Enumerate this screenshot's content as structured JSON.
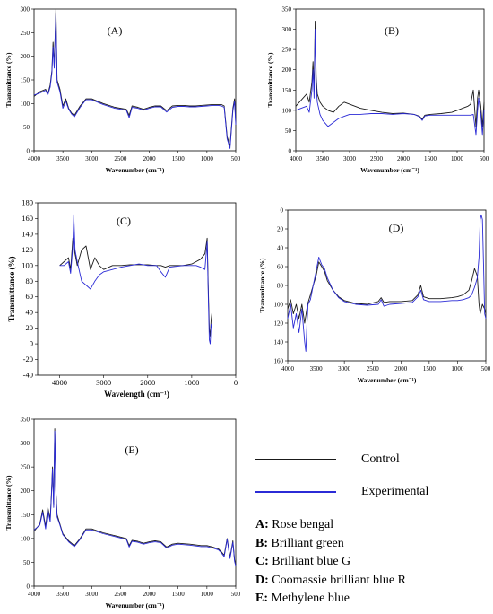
{
  "legend": {
    "control_label": "Control",
    "experimental_label": "Experimental",
    "control_color": "#1a1a1a",
    "experimental_color": "#2b2bd6"
  },
  "dyes": [
    {
      "key": "A:",
      "name": " Rose bengal"
    },
    {
      "key": "B:",
      "name": " Brilliant green"
    },
    {
      "key": "C:",
      "name": " Brilliant blue G"
    },
    {
      "key": "D:",
      "name": " Coomassie brilliant blue R"
    },
    {
      "key": "E:",
      "name": " Methylene blue"
    }
  ],
  "chart_data": [
    {
      "id": "A",
      "type": "line",
      "title": "(A)",
      "xlabel": "Wavenumber (cm⁻¹)",
      "ylabel": "Transmittance (%)",
      "xlim": [
        4000,
        500
      ],
      "ylim": [
        0,
        300
      ],
      "xticks": [
        4000,
        3500,
        3000,
        2500,
        2000,
        1500,
        1000,
        500
      ],
      "yticks": [
        0,
        50,
        100,
        150,
        200,
        250,
        300
      ],
      "series": [
        {
          "name": "Control",
          "x": [
            4000,
            3900,
            3800,
            3760,
            3720,
            3690,
            3670,
            3650,
            3620,
            3600,
            3550,
            3500,
            3450,
            3400,
            3350,
            3300,
            3200,
            3100,
            3000,
            2800,
            2600,
            2400,
            2350,
            2300,
            2200,
            2100,
            2000,
            1900,
            1800,
            1700,
            1600,
            1500,
            1400,
            1300,
            1200,
            1100,
            1000,
            900,
            800,
            750,
            700,
            650,
            600,
            550,
            520,
            500
          ],
          "y": [
            115,
            125,
            130,
            120,
            140,
            170,
            230,
            180,
            300,
            150,
            130,
            95,
            110,
            90,
            80,
            75,
            95,
            110,
            110,
            100,
            92,
            88,
            75,
            95,
            92,
            88,
            92,
            95,
            95,
            85,
            95,
            96,
            96,
            95,
            95,
            96,
            97,
            98,
            98,
            98,
            95,
            30,
            10,
            90,
            110,
            60
          ]
        },
        {
          "name": "Experimental",
          "x": [
            4000,
            3900,
            3800,
            3760,
            3720,
            3690,
            3670,
            3650,
            3620,
            3600,
            3550,
            3500,
            3450,
            3400,
            3350,
            3300,
            3200,
            3100,
            3000,
            2800,
            2600,
            2400,
            2350,
            2300,
            2200,
            2100,
            2000,
            1900,
            1800,
            1700,
            1600,
            1500,
            1400,
            1300,
            1200,
            1100,
            1000,
            900,
            800,
            750,
            700,
            650,
            600,
            550,
            520,
            500
          ],
          "y": [
            118,
            122,
            128,
            118,
            135,
            165,
            220,
            175,
            290,
            145,
            125,
            90,
            105,
            88,
            78,
            72,
            92,
            108,
            108,
            98,
            90,
            86,
            70,
            92,
            90,
            86,
            90,
            93,
            93,
            82,
            92,
            94,
            94,
            93,
            93,
            94,
            95,
            96,
            96,
            95,
            92,
            25,
            5,
            85,
            105,
            55
          ]
        }
      ]
    },
    {
      "id": "B",
      "type": "line",
      "title": "(B)",
      "xlabel": "Wavenumber (cm⁻¹)",
      "ylabel": "Transmittance (%)",
      "xlim": [
        4000,
        500
      ],
      "ylim": [
        0,
        350
      ],
      "xticks": [
        4000,
        3500,
        3000,
        2500,
        2000,
        1500,
        1000,
        500
      ],
      "yticks": [
        0,
        50,
        100,
        150,
        200,
        250,
        300,
        350
      ],
      "series": [
        {
          "name": "Control",
          "x": [
            4000,
            3900,
            3800,
            3750,
            3700,
            3680,
            3660,
            3640,
            3620,
            3600,
            3550,
            3500,
            3400,
            3300,
            3200,
            3100,
            3000,
            2800,
            2600,
            2400,
            2200,
            2000,
            1800,
            1700,
            1650,
            1600,
            1500,
            1300,
            1100,
            1000,
            900,
            800,
            750,
            700,
            650,
            620,
            600,
            560,
            530,
            500
          ],
          "y": [
            110,
            125,
            140,
            120,
            170,
            220,
            150,
            320,
            180,
            140,
            120,
            110,
            100,
            95,
            110,
            120,
            115,
            105,
            100,
            95,
            92,
            93,
            90,
            85,
            78,
            88,
            90,
            92,
            95,
            100,
            105,
            110,
            115,
            150,
            60,
            130,
            150,
            110,
            60,
            120
          ]
        },
        {
          "name": "Experimental",
          "x": [
            4000,
            3900,
            3800,
            3750,
            3700,
            3680,
            3660,
            3640,
            3620,
            3600,
            3550,
            3500,
            3400,
            3300,
            3200,
            3100,
            3000,
            2800,
            2600,
            2400,
            2200,
            2000,
            1800,
            1700,
            1650,
            1600,
            1500,
            1300,
            1100,
            1000,
            900,
            800,
            750,
            700,
            650,
            620,
            600,
            560,
            530,
            500
          ],
          "y": [
            100,
            105,
            110,
            95,
            150,
            200,
            130,
            300,
            160,
            120,
            90,
            75,
            60,
            70,
            80,
            85,
            90,
            90,
            92,
            92,
            90,
            92,
            90,
            84,
            75,
            86,
            88,
            88,
            88,
            88,
            88,
            88,
            88,
            90,
            40,
            100,
            130,
            90,
            40,
            100
          ]
        }
      ]
    },
    {
      "id": "C",
      "type": "line",
      "title": "(C)",
      "xlabel": "Wavelength (cm⁻¹)",
      "ylabel": "Transmittance (%)",
      "xlim": [
        4500,
        0
      ],
      "ylim": [
        -40,
        180
      ],
      "xticks": [
        4000,
        3000,
        2000,
        1000,
        0
      ],
      "yticks": [
        -40,
        -20,
        0,
        20,
        40,
        60,
        80,
        100,
        120,
        140,
        160,
        180
      ],
      "series": [
        {
          "name": "Control",
          "x": [
            4000,
            3900,
            3800,
            3750,
            3700,
            3650,
            3600,
            3500,
            3400,
            3300,
            3200,
            3100,
            3000,
            2800,
            2600,
            2400,
            2200,
            2000,
            1800,
            1700,
            1600,
            1500,
            1200,
            1000,
            900,
            800,
            700,
            650,
            620,
            600,
            580,
            560,
            540
          ],
          "y": [
            100,
            105,
            110,
            95,
            135,
            115,
            100,
            120,
            125,
            95,
            110,
            100,
            95,
            100,
            100,
            101,
            101,
            101,
            100,
            100,
            98,
            100,
            100,
            102,
            105,
            108,
            115,
            135,
            60,
            20,
            10,
            30,
            40
          ]
        },
        {
          "name": "Experimental",
          "x": [
            4000,
            3900,
            3800,
            3750,
            3700,
            3680,
            3650,
            3600,
            3500,
            3400,
            3300,
            3200,
            3100,
            3000,
            2800,
            2600,
            2400,
            2200,
            2000,
            1800,
            1700,
            1600,
            1500,
            1200,
            1000,
            900,
            800,
            700,
            650,
            620,
            600,
            580,
            560,
            540
          ],
          "y": [
            100,
            100,
            105,
            90,
            125,
            165,
            120,
            105,
            80,
            75,
            70,
            80,
            88,
            92,
            95,
            98,
            100,
            102,
            100,
            100,
            92,
            85,
            98,
            100,
            100,
            100,
            98,
            95,
            130,
            50,
            5,
            0,
            25,
            20
          ]
        }
      ]
    },
    {
      "id": "D",
      "type": "line",
      "title": "(D)",
      "xlabel": "Wavenumber (cm⁻¹)",
      "ylabel": "Transmittance (%)",
      "xlim": [
        4000,
        500
      ],
      "ylim": [
        160,
        0
      ],
      "xticks": [
        4000,
        3500,
        3000,
        2500,
        2000,
        1500,
        1000,
        500
      ],
      "yticks": [
        0,
        20,
        40,
        60,
        80,
        100,
        120,
        140,
        160
      ],
      "series": [
        {
          "name": "Control",
          "x": [
            4000,
            3950,
            3900,
            3850,
            3800,
            3750,
            3700,
            3650,
            3600,
            3550,
            3500,
            3450,
            3400,
            3350,
            3300,
            3200,
            3100,
            3000,
            2800,
            2600,
            2400,
            2350,
            2300,
            2200,
            2000,
            1800,
            1700,
            1650,
            1600,
            1500,
            1300,
            1100,
            1000,
            900,
            800,
            750,
            700,
            650,
            620,
            600,
            560,
            520,
            500
          ],
          "y": [
            105,
            95,
            110,
            100,
            115,
            100,
            120,
            100,
            90,
            80,
            70,
            55,
            60,
            65,
            75,
            85,
            92,
            96,
            99,
            100,
            97,
            93,
            98,
            97,
            97,
            96,
            90,
            80,
            92,
            94,
            94,
            93,
            92,
            90,
            85,
            75,
            62,
            70,
            100,
            110,
            100,
            105,
            110
          ]
        },
        {
          "name": "Experimental",
          "x": [
            4000,
            3950,
            3900,
            3850,
            3800,
            3750,
            3700,
            3680,
            3660,
            3640,
            3600,
            3550,
            3500,
            3450,
            3400,
            3350,
            3300,
            3200,
            3100,
            3000,
            2800,
            2600,
            2400,
            2350,
            2300,
            2200,
            2000,
            1800,
            1700,
            1650,
            1600,
            1500,
            1300,
            1100,
            1000,
            900,
            800,
            750,
            700,
            650,
            620,
            600,
            580,
            560,
            540,
            520,
            500
          ],
          "y": [
            115,
            100,
            125,
            110,
            130,
            105,
            140,
            150,
            120,
            100,
            95,
            80,
            65,
            50,
            58,
            62,
            72,
            85,
            93,
            97,
            100,
            101,
            100,
            95,
            102,
            100,
            99,
            98,
            92,
            85,
            95,
            97,
            97,
            96,
            96,
            95,
            93,
            90,
            82,
            72,
            50,
            10,
            5,
            10,
            60,
            110,
            115
          ]
        }
      ]
    },
    {
      "id": "E",
      "type": "line",
      "title": "(E)",
      "xlabel": "Wavenumber (cm⁻¹)",
      "ylabel": "Transmittance (%)",
      "xlim": [
        4000,
        500
      ],
      "ylim": [
        0,
        350
      ],
      "xticks": [
        4000,
        3500,
        3000,
        2500,
        2000,
        1500,
        1000,
        500
      ],
      "yticks": [
        0,
        50,
        100,
        150,
        200,
        250,
        300,
        350
      ],
      "series": [
        {
          "name": "Control",
          "x": [
            4000,
            3900,
            3850,
            3800,
            3760,
            3720,
            3700,
            3680,
            3660,
            3640,
            3620,
            3600,
            3550,
            3500,
            3400,
            3300,
            3200,
            3100,
            3000,
            2800,
            2600,
            2400,
            2350,
            2300,
            2200,
            2100,
            2000,
            1900,
            1800,
            1700,
            1600,
            1500,
            1300,
            1100,
            1000,
            900,
            800,
            750,
            700,
            650,
            600,
            550,
            520,
            500
          ],
          "y": [
            115,
            130,
            160,
            125,
            165,
            140,
            190,
            250,
            170,
            330,
            200,
            150,
            130,
            110,
            95,
            85,
            100,
            120,
            120,
            112,
            106,
            100,
            85,
            96,
            94,
            90,
            93,
            95,
            93,
            82,
            88,
            90,
            88,
            85,
            85,
            82,
            78,
            72,
            65,
            100,
            60,
            95,
            55,
            45
          ]
        },
        {
          "name": "Experimental",
          "x": [
            4000,
            3900,
            3850,
            3800,
            3760,
            3720,
            3700,
            3680,
            3660,
            3640,
            3620,
            3600,
            3550,
            3500,
            3400,
            3300,
            3200,
            3100,
            3000,
            2800,
            2600,
            2400,
            2350,
            2300,
            2200,
            2100,
            2000,
            1900,
            1800,
            1700,
            1600,
            1500,
            1300,
            1100,
            1000,
            900,
            800,
            750,
            700,
            650,
            600,
            550,
            520,
            500
          ],
          "y": [
            118,
            128,
            155,
            120,
            160,
            135,
            185,
            245,
            165,
            325,
            195,
            145,
            128,
            108,
            93,
            83,
            98,
            118,
            118,
            110,
            104,
            98,
            82,
            94,
            92,
            88,
            91,
            93,
            91,
            80,
            86,
            88,
            86,
            83,
            83,
            80,
            76,
            70,
            62,
            98,
            58,
            92,
            52,
            42
          ]
        }
      ]
    }
  ]
}
